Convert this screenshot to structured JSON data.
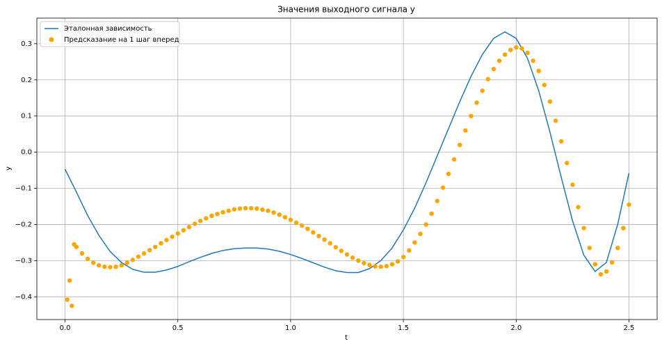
{
  "chart_data": {
    "type": "line",
    "title": "Значения выходного сигнала y",
    "x_label": "t",
    "y_label": "y",
    "xlim": [
      -0.125,
      2.625
    ],
    "ylim": [
      -0.463,
      0.371
    ],
    "xticks": [
      {
        "value": 0,
        "label": "0.0"
      },
      {
        "value": 0.5,
        "label": "0.5"
      },
      {
        "value": 1,
        "label": "1.0"
      },
      {
        "value": 1.5,
        "label": "1.5"
      },
      {
        "value": 2,
        "label": "2.0"
      },
      {
        "value": 2.5,
        "label": "2.5"
      }
    ],
    "yticks": [
      {
        "value": -0.4,
        "label": "−0.4"
      },
      {
        "value": -0.3,
        "label": "−0.3"
      },
      {
        "value": -0.2,
        "label": "−0.2"
      },
      {
        "value": -0.1,
        "label": "−0.1"
      },
      {
        "value": 0,
        "label": "0.0"
      },
      0.1,
      0.2,
      0.3
    ],
    "grid": true,
    "legend": "upper left",
    "series": [
      {
        "name": "Эталонная зависимость",
        "type": "line",
        "color": "#1f77b4",
        "x": [
          0,
          0.05,
          0.1,
          0.15,
          0.2,
          0.25,
          0.3,
          0.35,
          0.4,
          0.45,
          0.5,
          0.55,
          0.6,
          0.65,
          0.7,
          0.75,
          0.8,
          0.85,
          0.9,
          0.95,
          1.0,
          1.05,
          1.1,
          1.15,
          1.2,
          1.25,
          1.3,
          1.35,
          1.4,
          1.45,
          1.5,
          1.55,
          1.6,
          1.65,
          1.7,
          1.75,
          1.8,
          1.85,
          1.9,
          1.95,
          2.0,
          2.05,
          2.1,
          2.15,
          2.2,
          2.25,
          2.3,
          2.35,
          2.4,
          2.45,
          2.5
        ],
        "values": [
          -0.047,
          -0.11,
          -0.175,
          -0.23,
          -0.275,
          -0.305,
          -0.324,
          -0.332,
          -0.332,
          -0.326,
          -0.316,
          -0.303,
          -0.291,
          -0.28,
          -0.272,
          -0.267,
          -0.265,
          -0.265,
          -0.268,
          -0.274,
          -0.283,
          -0.294,
          -0.306,
          -0.318,
          -0.328,
          -0.333,
          -0.333,
          -0.322,
          -0.3,
          -0.265,
          -0.215,
          -0.155,
          -0.085,
          -0.01,
          0.065,
          0.14,
          0.21,
          0.27,
          0.315,
          0.333,
          0.315,
          0.26,
          0.17,
          0.055,
          -0.07,
          -0.19,
          -0.285,
          -0.33,
          -0.305,
          -0.2,
          -0.058
        ]
      },
      {
        "name": "Предсказание на 1 шаг вперед",
        "type": "scatter",
        "color": "#ffa500",
        "x": [
          0.01,
          0.02,
          0.03,
          0.04,
          0.05,
          0.075,
          0.1,
          0.125,
          0.15,
          0.175,
          0.2,
          0.225,
          0.25,
          0.275,
          0.3,
          0.325,
          0.35,
          0.375,
          0.4,
          0.425,
          0.45,
          0.475,
          0.5,
          0.525,
          0.55,
          0.575,
          0.6,
          0.625,
          0.65,
          0.675,
          0.7,
          0.725,
          0.75,
          0.775,
          0.8,
          0.825,
          0.85,
          0.875,
          0.9,
          0.925,
          0.95,
          0.975,
          1.0,
          1.025,
          1.05,
          1.075,
          1.1,
          1.125,
          1.15,
          1.175,
          1.2,
          1.225,
          1.25,
          1.275,
          1.3,
          1.325,
          1.35,
          1.375,
          1.4,
          1.425,
          1.45,
          1.475,
          1.5,
          1.525,
          1.55,
          1.575,
          1.6,
          1.625,
          1.65,
          1.675,
          1.7,
          1.725,
          1.75,
          1.775,
          1.8,
          1.825,
          1.85,
          1.875,
          1.9,
          1.925,
          1.95,
          1.975,
          2.0,
          2.025,
          2.05,
          2.075,
          2.1,
          2.125,
          2.15,
          2.175,
          2.2,
          2.225,
          2.25,
          2.275,
          2.3,
          2.325,
          2.35,
          2.375,
          2.4,
          2.425,
          2.45,
          2.475,
          2.5
        ],
        "values": [
          -0.408,
          -0.355,
          -0.425,
          -0.255,
          -0.262,
          -0.28,
          -0.295,
          -0.306,
          -0.313,
          -0.317,
          -0.318,
          -0.317,
          -0.313,
          -0.306,
          -0.298,
          -0.289,
          -0.28,
          -0.271,
          -0.262,
          -0.252,
          -0.243,
          -0.234,
          -0.225,
          -0.216,
          -0.207,
          -0.198,
          -0.19,
          -0.183,
          -0.176,
          -0.171,
          -0.166,
          -0.162,
          -0.158,
          -0.156,
          -0.155,
          -0.155,
          -0.156,
          -0.159,
          -0.162,
          -0.167,
          -0.173,
          -0.18,
          -0.187,
          -0.195,
          -0.203,
          -0.212,
          -0.222,
          -0.232,
          -0.242,
          -0.252,
          -0.263,
          -0.273,
          -0.283,
          -0.292,
          -0.3,
          -0.307,
          -0.312,
          -0.316,
          -0.317,
          -0.315,
          -0.31,
          -0.302,
          -0.29,
          -0.272,
          -0.25,
          -0.226,
          -0.2,
          -0.17,
          -0.135,
          -0.098,
          -0.06,
          -0.02,
          0.02,
          0.06,
          0.1,
          0.137,
          0.17,
          0.202,
          0.23,
          0.253,
          0.27,
          0.283,
          0.29,
          0.287,
          0.275,
          0.253,
          0.225,
          0.186,
          0.14,
          0.087,
          0.03,
          -0.03,
          -0.09,
          -0.152,
          -0.21,
          -0.265,
          -0.31,
          -0.338,
          -0.33,
          -0.305,
          -0.265,
          -0.21,
          -0.145
        ]
      }
    ]
  }
}
